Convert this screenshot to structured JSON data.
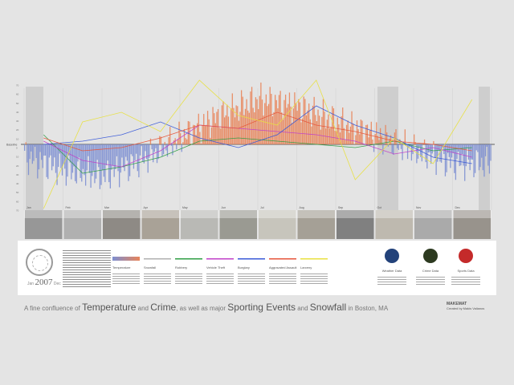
{
  "poster": {
    "title_parts": [
      {
        "text": "A fine confluence of ",
        "big": false
      },
      {
        "text": "Temperature",
        "big": true
      },
      {
        "text": " and ",
        "big": false
      },
      {
        "text": "Crime",
        "big": true
      },
      {
        "text": ", as well as major ",
        "big": false
      },
      {
        "text": "Sporting Events",
        "big": true
      },
      {
        "text": " and ",
        "big": false
      },
      {
        "text": "Snowfall",
        "big": true
      },
      {
        "text": " in Boston, MA",
        "big": false
      }
    ],
    "year": "2007",
    "year_prefix": "Jan",
    "year_suffix": "Dec",
    "maker_line1": "MAKEMAT",
    "maker_line2": "Created by Makis Valianos",
    "colors": {
      "background": "#e4e4e4",
      "temperature_warm": "#e8845a",
      "temperature_cool": "#7d8fd1",
      "band": "#c4c4c4",
      "baseline": "#333333"
    }
  },
  "legend": {
    "columns": [
      {
        "label": "Temperature",
        "color": "#e8845a"
      },
      {
        "label": "Snowfall",
        "color": "#b0b0b0"
      },
      {
        "label": "Robbery",
        "color": "#2f9e44"
      },
      {
        "label": "Vehicle Theft",
        "color": "#c040c8"
      },
      {
        "label": "Burglary",
        "color": "#3a5ad8"
      },
      {
        "label": "Aggravated Assault",
        "color": "#e6553b"
      },
      {
        "label": "Larceny",
        "color": "#e8e040"
      }
    ],
    "logos": [
      {
        "label": "Weather Data",
        "color": "#23427a"
      },
      {
        "label": "Crime Data",
        "color": "#2d3a20"
      },
      {
        "label": "Sports Data",
        "color": "#c42a2a"
      }
    ]
  },
  "chart_data": {
    "type": "bar",
    "x": [
      "Jan",
      "Feb",
      "Mar",
      "Apr",
      "May",
      "Jun",
      "Jul",
      "Aug",
      "Sep",
      "Oct",
      "Nov",
      "Dec"
    ],
    "temperature_deviation": [
      -0.2,
      -0.4,
      -0.5,
      -0.25,
      0.1,
      0.45,
      0.7,
      0.6,
      0.35,
      0.15,
      -0.1,
      -0.3
    ],
    "series": [
      {
        "name": "Robbery",
        "values": [
          0.15,
          -0.45,
          -0.35,
          -0.2,
          0.05,
          0.1,
          0.05,
          0.0,
          -0.05,
          0.05,
          -0.1,
          -0.05
        ]
      },
      {
        "name": "Vehicle Theft",
        "values": [
          0.05,
          -0.25,
          -0.35,
          -0.1,
          0.3,
          0.25,
          0.2,
          0.15,
          0.05,
          -0.15,
          -0.05,
          -0.2
        ]
      },
      {
        "name": "Burglary",
        "values": [
          0.0,
          0.05,
          0.15,
          0.35,
          0.1,
          -0.05,
          0.15,
          0.6,
          0.3,
          0.1,
          -0.2,
          -0.3
        ]
      },
      {
        "name": "Aggravated Assault",
        "values": [
          0.1,
          -0.1,
          -0.05,
          0.1,
          0.3,
          0.25,
          0.5,
          0.3,
          0.2,
          0.05,
          0.0,
          -0.1
        ]
      },
      {
        "name": "Larceny",
        "values": [
          -1.0,
          0.35,
          0.5,
          0.2,
          1.0,
          0.45,
          0.3,
          1.0,
          -0.55,
          0.1,
          -0.3,
          0.7
        ]
      }
    ],
    "y_ticks": [
      "70",
      "60",
      "50",
      "40",
      "30",
      "20",
      "10",
      "0",
      "10",
      "20",
      "30",
      "40",
      "50",
      "60",
      "70"
    ],
    "baseline_label": "Baseline",
    "grid": false
  }
}
